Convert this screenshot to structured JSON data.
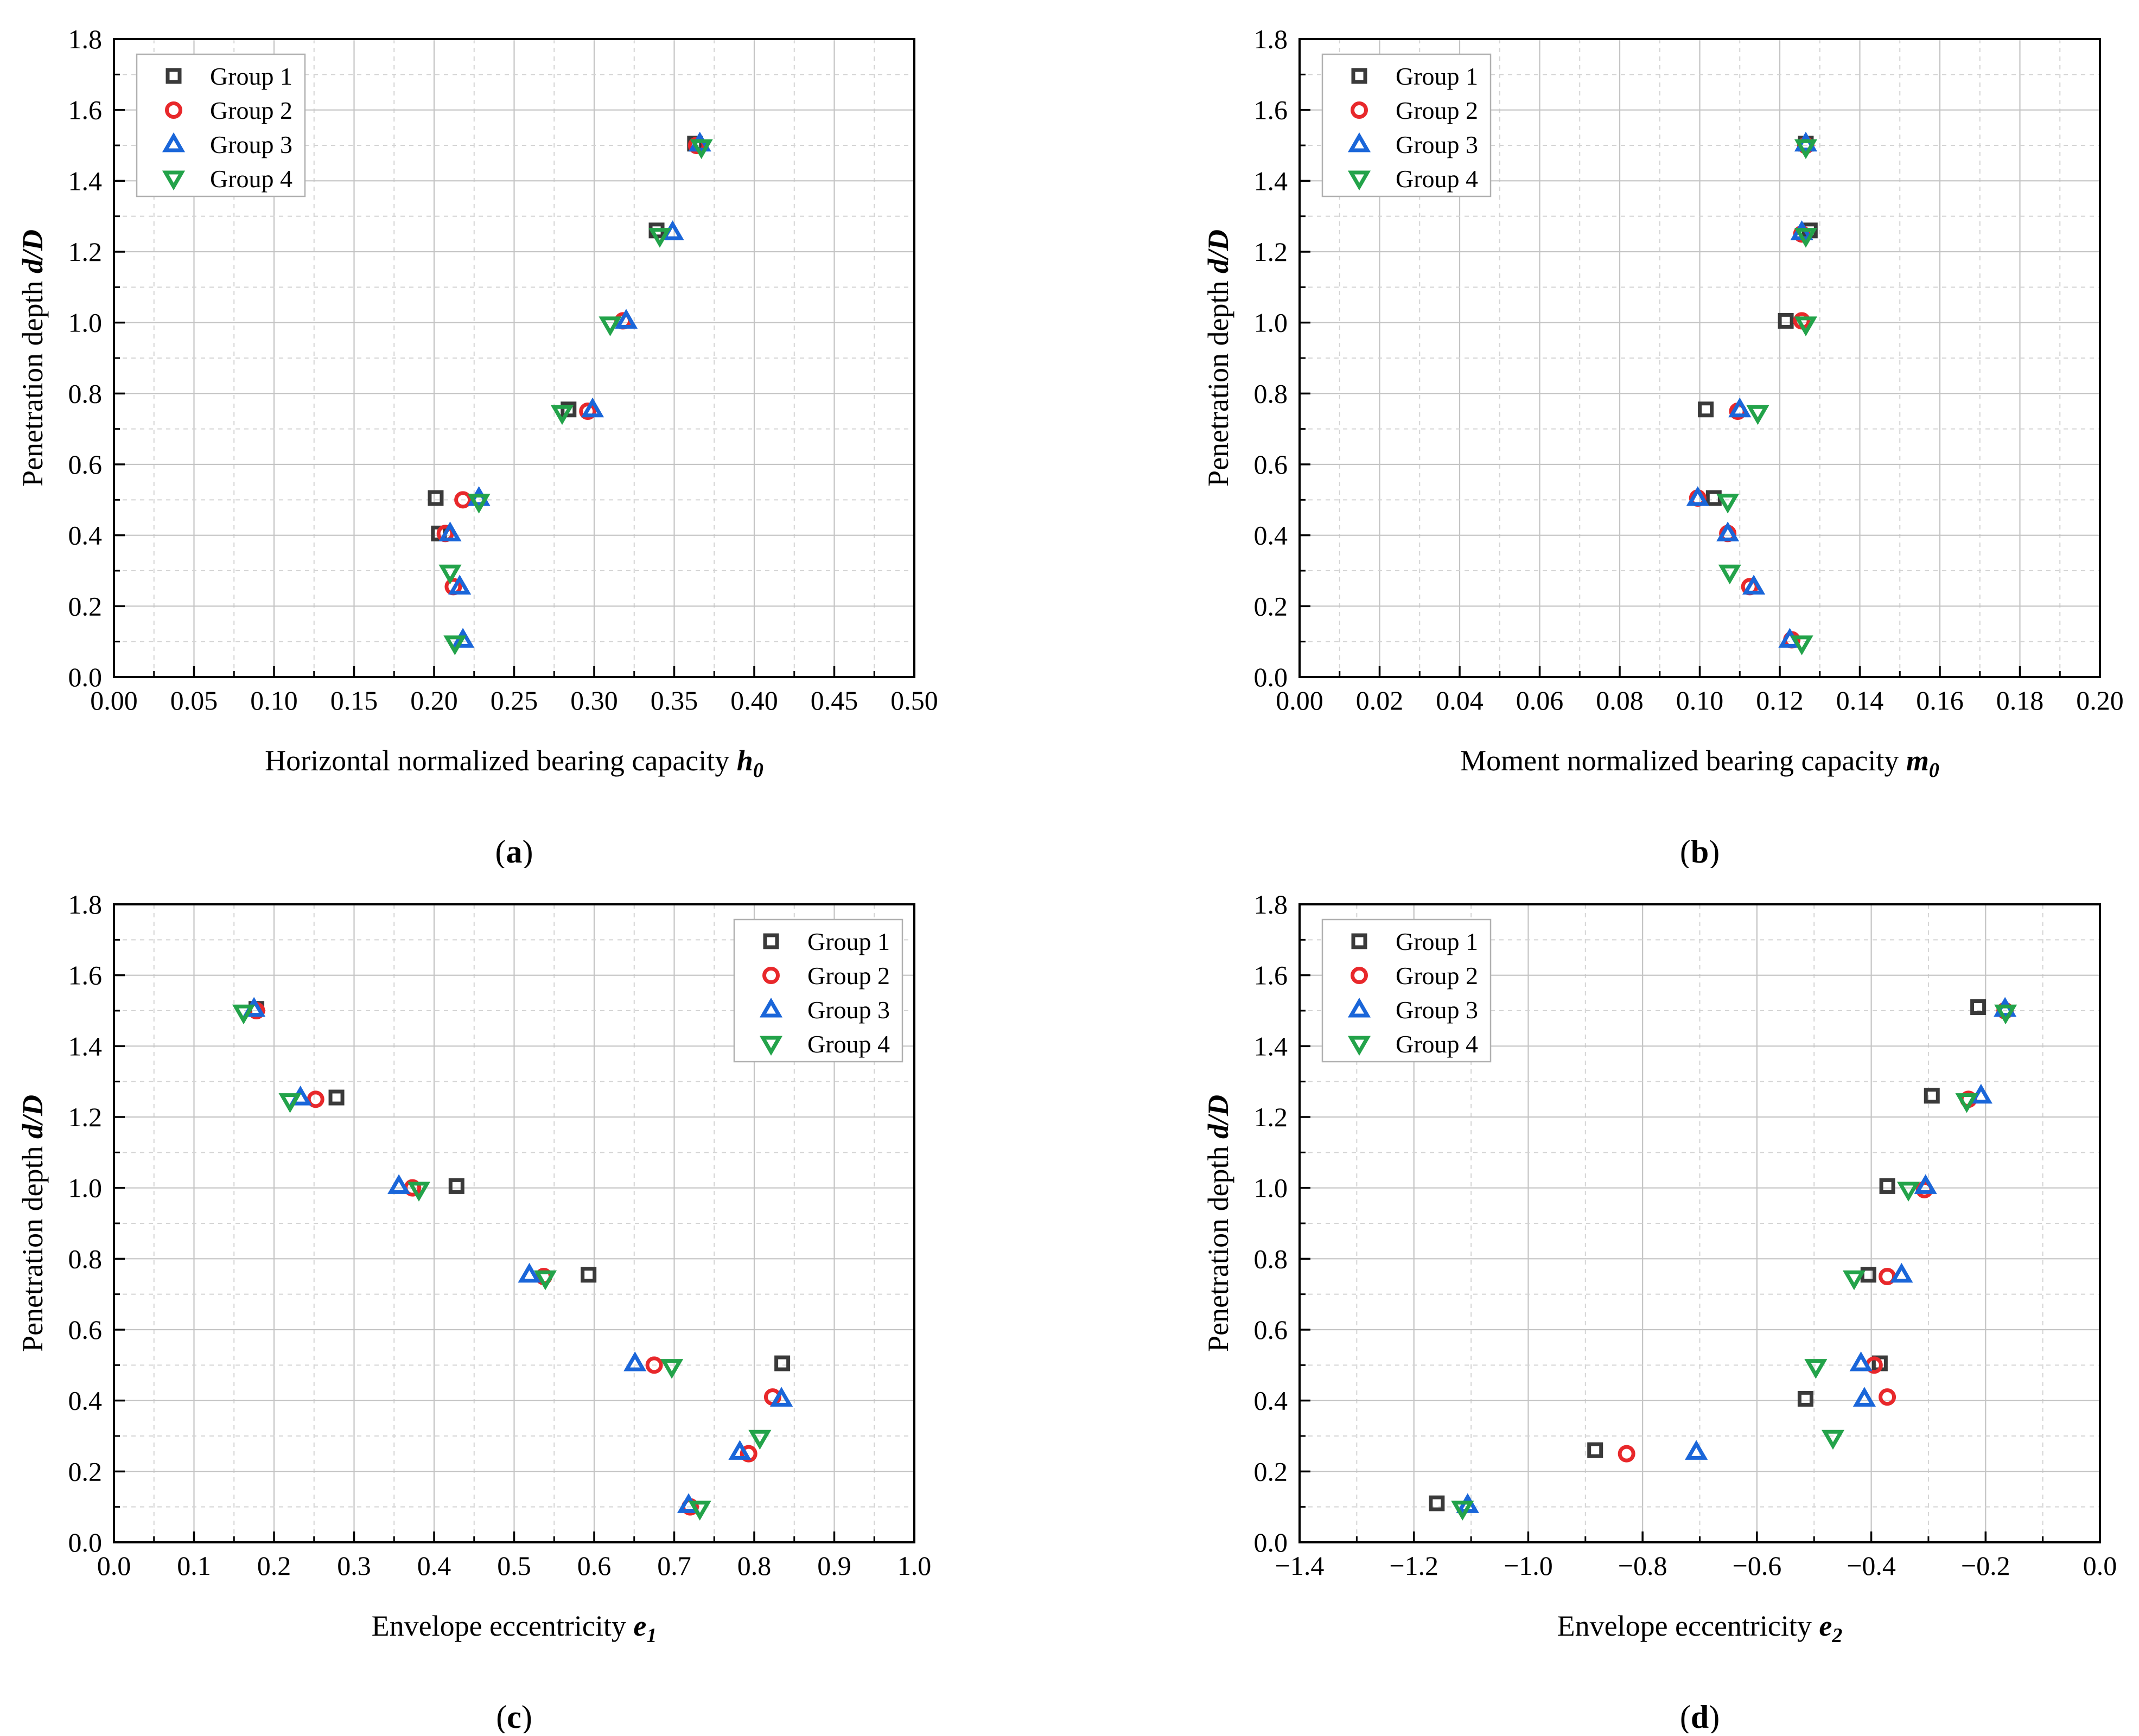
{
  "colors": {
    "group1": "#3a3a3a",
    "group2": "#e8282b",
    "group3": "#1a66d9",
    "group4": "#23a34a"
  },
  "legend": [
    "Group 1",
    "Group 2",
    "Group 3",
    "Group 4"
  ],
  "chart_data": [
    {
      "id": "a",
      "type": "scatter",
      "caption": "(a)",
      "caption_letter": "a",
      "ylabel": "Penetration depth d/D",
      "ylabel_plain": "Penetration depth ",
      "ylabel_italic": "d/D",
      "xlabel_plain": "Horizontal normalized bearing capacity ",
      "xlabel_italic": "h",
      "xlabel_sub": "0",
      "xlim": [
        0,
        0.5
      ],
      "ylim": [
        0,
        1.8
      ],
      "xticks": [
        0,
        0.05,
        0.1,
        0.15,
        0.2,
        0.25,
        0.3,
        0.35,
        0.4,
        0.45,
        0.5
      ],
      "xtick_labels": [
        "0.00",
        "0.05",
        "0.10",
        "0.15",
        "0.20",
        "0.25",
        "0.30",
        "0.35",
        "0.40",
        "0.45",
        "0.50"
      ],
      "yticks": [
        0,
        0.2,
        0.4,
        0.6,
        0.8,
        1.0,
        1.2,
        1.4,
        1.6,
        1.8
      ],
      "ytick_labels": [
        "0.0",
        "0.2",
        "0.4",
        "0.6",
        "0.8",
        "1.0",
        "1.2",
        "1.4",
        "1.6",
        "1.8"
      ],
      "legend_position": "top-left",
      "series": [
        {
          "name": "Group 1",
          "marker": "square",
          "points": [
            [
              0.201,
              0.505
            ],
            [
              0.203,
              0.405
            ],
            [
              0.284,
              0.755
            ],
            [
              0.339,
              1.26
            ],
            [
              0.363,
              1.505
            ]
          ]
        },
        {
          "name": "Group 2",
          "marker": "circle",
          "points": [
            [
              0.218,
              0.5
            ],
            [
              0.207,
              0.405
            ],
            [
              0.212,
              0.255
            ],
            [
              0.296,
              0.75
            ],
            [
              0.318,
              1.005
            ],
            [
              0.364,
              1.5
            ]
          ]
        },
        {
          "name": "Group 3",
          "marker": "triangle-up",
          "points": [
            [
              0.228,
              0.505
            ],
            [
              0.21,
              0.405
            ],
            [
              0.216,
              0.255
            ],
            [
              0.218,
              0.105
            ],
            [
              0.299,
              0.755
            ],
            [
              0.32,
              1.005
            ],
            [
              0.349,
              1.255
            ],
            [
              0.366,
              1.505
            ]
          ]
        },
        {
          "name": "Group 4",
          "marker": "triangle-down",
          "points": [
            [
              0.228,
              0.495
            ],
            [
              0.21,
              0.295
            ],
            [
              0.213,
              0.095
            ],
            [
              0.28,
              0.745
            ],
            [
              0.31,
              0.995
            ],
            [
              0.341,
              1.245
            ],
            [
              0.367,
              1.495
            ]
          ]
        }
      ]
    },
    {
      "id": "b",
      "type": "scatter",
      "caption": "(b)",
      "caption_letter": "b",
      "ylabel": "Penetration depth d/D",
      "ylabel_plain": "Penetration depth ",
      "ylabel_italic": "d/D",
      "xlabel_plain": "Moment normalized bearing capacity ",
      "xlabel_italic": "m",
      "xlabel_sub": "0",
      "xlim": [
        0,
        0.2
      ],
      "ylim": [
        0,
        1.8
      ],
      "xticks": [
        0,
        0.02,
        0.04,
        0.06,
        0.08,
        0.1,
        0.12,
        0.14,
        0.16,
        0.18,
        0.2
      ],
      "xtick_labels": [
        "0.00",
        "0.02",
        "0.04",
        "0.06",
        "0.08",
        "0.10",
        "0.12",
        "0.14",
        "0.16",
        "0.18",
        "0.20"
      ],
      "yticks": [
        0,
        0.2,
        0.4,
        0.6,
        0.8,
        1.0,
        1.2,
        1.4,
        1.6,
        1.8
      ],
      "ytick_labels": [
        "0.0",
        "0.2",
        "0.4",
        "0.6",
        "0.8",
        "1.0",
        "1.2",
        "1.4",
        "1.6",
        "1.8"
      ],
      "legend_position": "top-left",
      "series": [
        {
          "name": "Group 1",
          "marker": "square",
          "points": [
            [
              0.1015,
              0.755
            ],
            [
              0.1035,
              0.505
            ],
            [
              0.1215,
              1.005
            ],
            [
              0.1275,
              1.26
            ],
            [
              0.1265,
              1.505
            ]
          ]
        },
        {
          "name": "Group 2",
          "marker": "circle",
          "points": [
            [
              0.1095,
              0.75
            ],
            [
              0.0995,
              0.505
            ],
            [
              0.107,
              0.405
            ],
            [
              0.1125,
              0.255
            ],
            [
              0.123,
              0.105
            ],
            [
              0.1255,
              1.005
            ],
            [
              0.1255,
              1.25
            ],
            [
              0.1265,
              1.5
            ]
          ]
        },
        {
          "name": "Group 3",
          "marker": "triangle-up",
          "points": [
            [
              0.11,
              0.755
            ],
            [
              0.0995,
              0.505
            ],
            [
              0.107,
              0.405
            ],
            [
              0.1135,
              0.255
            ],
            [
              0.1225,
              0.105
            ],
            [
              0.1255,
              1.255
            ],
            [
              0.1265,
              1.505
            ]
          ]
        },
        {
          "name": "Group 4",
          "marker": "triangle-down",
          "points": [
            [
              0.1145,
              0.745
            ],
            [
              0.107,
              0.495
            ],
            [
              0.1075,
              0.295
            ],
            [
              0.1255,
              0.095
            ],
            [
              0.1265,
              0.995
            ],
            [
              0.1265,
              1.245
            ],
            [
              0.1265,
              1.495
            ]
          ]
        }
      ]
    },
    {
      "id": "c",
      "type": "scatter",
      "caption": "(c)",
      "caption_letter": "c",
      "ylabel": "Penetration depth d/D",
      "ylabel_plain": "Penetration depth ",
      "ylabel_italic": "d/D",
      "xlabel_plain": "Envelope eccentricity ",
      "xlabel_italic": "e",
      "xlabel_sub": "1",
      "xlim": [
        0,
        1.0
      ],
      "ylim": [
        0,
        1.8
      ],
      "xticks": [
        0,
        0.1,
        0.2,
        0.3,
        0.4,
        0.5,
        0.6,
        0.7,
        0.8,
        0.9,
        1.0
      ],
      "xtick_labels": [
        "0.0",
        "0.1",
        "0.2",
        "0.3",
        "0.4",
        "0.5",
        "0.6",
        "0.7",
        "0.8",
        "0.9",
        "1.0"
      ],
      "yticks": [
        0,
        0.2,
        0.4,
        0.6,
        0.8,
        1.0,
        1.2,
        1.4,
        1.6,
        1.8
      ],
      "ytick_labels": [
        "0.0",
        "0.2",
        "0.4",
        "0.6",
        "0.8",
        "1.0",
        "1.2",
        "1.4",
        "1.6",
        "1.8"
      ],
      "legend_position": "top-right",
      "series": [
        {
          "name": "Group 1",
          "marker": "square",
          "points": [
            [
              0.178,
              1.505
            ],
            [
              0.278,
              1.255
            ],
            [
              0.428,
              1.005
            ],
            [
              0.593,
              0.755
            ],
            [
              0.835,
              0.505
            ]
          ]
        },
        {
          "name": "Group 2",
          "marker": "circle",
          "points": [
            [
              0.178,
              1.5
            ],
            [
              0.252,
              1.25
            ],
            [
              0.373,
              1.0
            ],
            [
              0.537,
              0.75
            ],
            [
              0.675,
              0.5
            ],
            [
              0.823,
              0.41
            ],
            [
              0.793,
              0.25
            ],
            [
              0.72,
              0.1
            ]
          ]
        },
        {
          "name": "Group 3",
          "marker": "triangle-up",
          "points": [
            [
              0.175,
              1.505
            ],
            [
              0.233,
              1.255
            ],
            [
              0.356,
              1.005
            ],
            [
              0.519,
              0.755
            ],
            [
              0.651,
              0.505
            ],
            [
              0.834,
              0.405
            ],
            [
              0.782,
              0.255
            ],
            [
              0.718,
              0.105
            ]
          ]
        },
        {
          "name": "Group 4",
          "marker": "triangle-down",
          "points": [
            [
              0.162,
              1.495
            ],
            [
              0.22,
              1.245
            ],
            [
              0.381,
              0.995
            ],
            [
              0.539,
              0.745
            ],
            [
              0.697,
              0.495
            ],
            [
              0.807,
              0.295
            ],
            [
              0.732,
              0.095
            ]
          ]
        }
      ]
    },
    {
      "id": "d",
      "type": "scatter",
      "caption": "(d)",
      "caption_letter": "d",
      "ylabel": "Penetration depth d/D",
      "ylabel_plain": "Penetration depth ",
      "ylabel_italic": "d/D",
      "xlabel_plain": "Envelope eccentricity  ",
      "xlabel_italic": "e",
      "xlabel_sub": "2",
      "xlim": [
        -1.4,
        0
      ],
      "ylim": [
        0,
        1.8
      ],
      "xticks": [
        -1.4,
        -1.2,
        -1.0,
        -0.8,
        -0.6,
        -0.4,
        -0.2,
        0.0
      ],
      "xtick_labels": [
        "−1.4",
        "−1.2",
        "−1.0",
        "−0.8",
        "−0.6",
        "−0.4",
        "−0.2",
        "0.0"
      ],
      "yticks": [
        0,
        0.2,
        0.4,
        0.6,
        0.8,
        1.0,
        1.2,
        1.4,
        1.6,
        1.8
      ],
      "ytick_labels": [
        "0.0",
        "0.2",
        "0.4",
        "0.6",
        "0.8",
        "1.0",
        "1.2",
        "1.4",
        "1.6",
        "1.8"
      ],
      "legend_position": "top-left",
      "series": [
        {
          "name": "Group 1",
          "marker": "square",
          "points": [
            [
              -1.16,
              0.11
            ],
            [
              -0.883,
              0.26
            ],
            [
              -0.515,
              0.405
            ],
            [
              -0.385,
              0.505
            ],
            [
              -0.405,
              0.755
            ],
            [
              -0.372,
              1.005
            ],
            [
              -0.294,
              1.26
            ],
            [
              -0.213,
              1.51
            ]
          ]
        },
        {
          "name": "Group 2",
          "marker": "circle",
          "points": [
            [
              -0.828,
              0.25
            ],
            [
              -0.372,
              0.41
            ],
            [
              -0.395,
              0.5
            ],
            [
              -0.372,
              0.75
            ],
            [
              -0.307,
              0.995
            ],
            [
              -0.23,
              1.25
            ],
            [
              -0.166,
              1.5
            ]
          ]
        },
        {
          "name": "Group 3",
          "marker": "triangle-up",
          "points": [
            [
              -1.106,
              0.105
            ],
            [
              -0.706,
              0.255
            ],
            [
              -0.412,
              0.405
            ],
            [
              -0.418,
              0.505
            ],
            [
              -0.347,
              0.755
            ],
            [
              -0.305,
              1.005
            ],
            [
              -0.208,
              1.26
            ],
            [
              -0.166,
              1.505
            ]
          ]
        },
        {
          "name": "Group 4",
          "marker": "triangle-down",
          "points": [
            [
              -1.115,
              0.095
            ],
            [
              -0.467,
              0.295
            ],
            [
              -0.497,
              0.495
            ],
            [
              -0.43,
              0.745
            ],
            [
              -0.335,
              0.995
            ],
            [
              -0.233,
              1.245
            ],
            [
              -0.165,
              1.495
            ]
          ]
        }
      ]
    }
  ]
}
